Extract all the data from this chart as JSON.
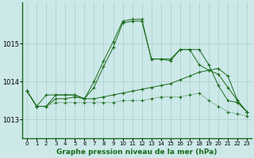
{
  "title": "Graphe pression niveau de la mer (hPa)",
  "background_color": "#cce8e8",
  "grid_color": "#aacccc",
  "line_color": "#1a6b1a",
  "x_labels": [
    "0",
    "1",
    "2",
    "3",
    "4",
    "5",
    "6",
    "7",
    "8",
    "9",
    "10",
    "11",
    "12",
    "13",
    "14",
    "15",
    "16",
    "17",
    "18",
    "19",
    "20",
    "21",
    "22",
    "23"
  ],
  "ylim": [
    1012.5,
    1016.1
  ],
  "yticks": [
    1013,
    1014,
    1015
  ],
  "series": [
    {
      "data": [
        1013.75,
        1013.35,
        1013.65,
        1013.65,
        1013.65,
        1013.65,
        1013.55,
        1014.0,
        1014.55,
        1015.05,
        1015.6,
        1015.65,
        1015.65,
        1014.6,
        1014.6,
        1014.6,
        1014.85,
        1014.85,
        1014.85,
        1014.45,
        1013.9,
        1013.5,
        1013.45,
        1013.2
      ],
      "linestyle": "-",
      "marker": "+"
    },
    {
      "data": [
        1013.75,
        1013.35,
        1013.35,
        1013.65,
        1013.65,
        1013.65,
        1013.55,
        1013.85,
        1014.4,
        1014.9,
        1015.55,
        1015.6,
        1015.6,
        1014.6,
        1014.6,
        1014.55,
        1014.85,
        1014.85,
        1014.45,
        1014.3,
        1014.2,
        1013.85,
        1013.5,
        1013.2
      ],
      "linestyle": "-",
      "marker": "+"
    },
    {
      "data": [
        1013.75,
        1013.35,
        1013.35,
        1013.55,
        1013.55,
        1013.6,
        1013.55,
        1013.55,
        1013.6,
        1013.65,
        1013.7,
        1013.75,
        1013.8,
        1013.85,
        1013.9,
        1013.95,
        1014.05,
        1014.15,
        1014.25,
        1014.3,
        1014.35,
        1014.15,
        1013.5,
        1013.2
      ],
      "linestyle": "-",
      "marker": "+"
    },
    {
      "data": [
        1013.75,
        1013.35,
        1013.35,
        1013.45,
        1013.45,
        1013.45,
        1013.45,
        1013.45,
        1013.45,
        1013.45,
        1013.5,
        1013.5,
        1013.5,
        1013.55,
        1013.6,
        1013.6,
        1013.6,
        1013.65,
        1013.7,
        1013.5,
        1013.35,
        1013.2,
        1013.15,
        1013.1
      ],
      "linestyle": ":",
      "marker": "+"
    }
  ]
}
